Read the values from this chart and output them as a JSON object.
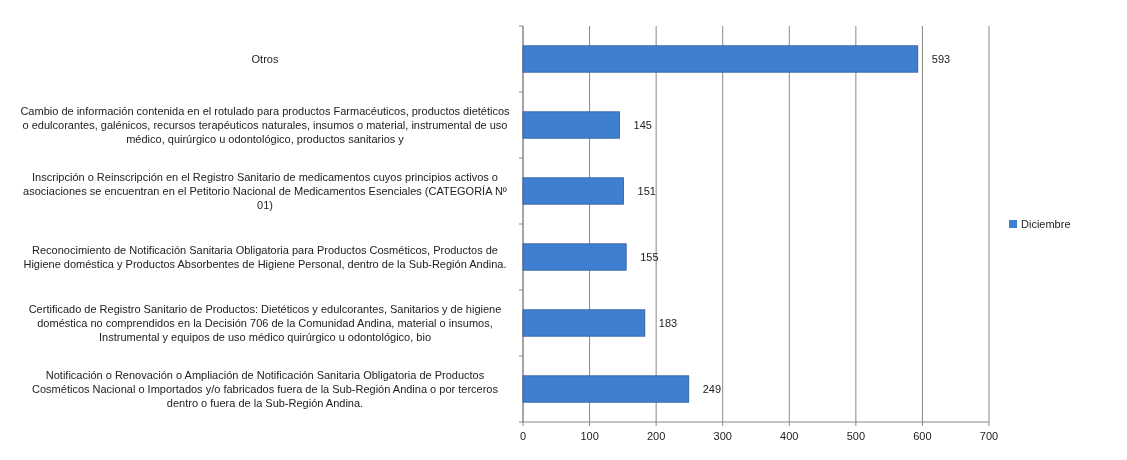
{
  "chart_data": {
    "type": "bar",
    "orientation": "horizontal",
    "categories": [
      "Otros",
      "Cambio de información contenida en el rotulado para productos Farmacéuticos, productos dietéticos o edulcorantes, galénicos, recursos terapéuticos naturales, insumos o material, instrumental de uso médico, quirúrgico u odontológico, productos sanitarios y",
      "Inscripción o Reinscripción en el Registro Sanitario de medicamentos cuyos principios activos o asociaciones se encuentran en el Petitorio Nacional de Medicamentos Esenciales (CATEGORÍA Nº 01)",
      "Reconocimiento de Notificación Sanitaria Obligatoria para Productos Cosméticos, Productos de Higiene doméstica y Productos Absorbentes de Higiene Personal, dentro de la Sub-Región Andina.",
      "Certificado de Registro Sanitario de Productos: Dietéticos y edulcorantes, Sanitarios y de higiene doméstica no comprendidos en la Decisión 706 de la Comunidad Andina, material o insumos, Instrumental y equipos de uso médico quirúrgico u odontológico, bio",
      "Notificación o Renovación o Ampliación de Notificación Sanitaria Obligatoria de Productos Cosméticos Nacional o Importados y/o fabricados fuera de la Sub-Región Andina o por terceros dentro o fuera de la Sub-Región Andina."
    ],
    "series": [
      {
        "name": "Diciembre",
        "color": "#3f7fcf",
        "values": [
          593,
          145,
          151,
          155,
          183,
          249
        ]
      }
    ],
    "xlim": [
      0,
      700
    ],
    "xticks": [
      0,
      100,
      200,
      300,
      400,
      500,
      600,
      700
    ],
    "grid": "x",
    "legend": "right",
    "data_labels": true
  }
}
